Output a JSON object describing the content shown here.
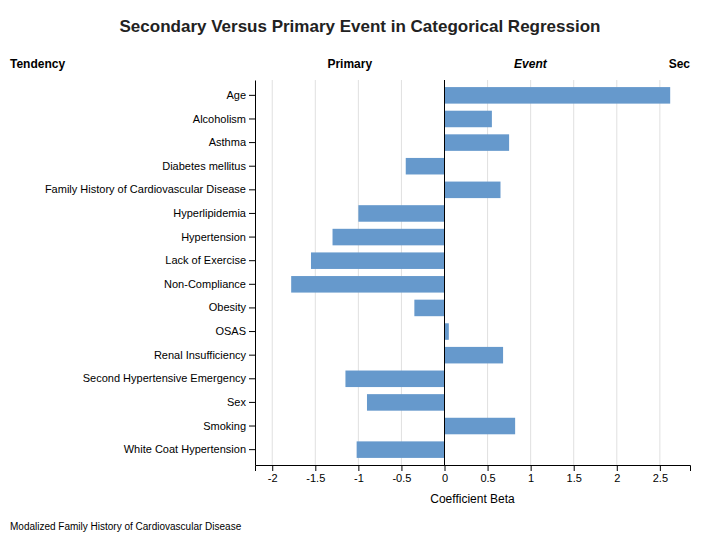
{
  "chart_data": {
    "type": "bar",
    "orientation": "horizontal",
    "title": "Secondary Versus Primary Event in Categorical Regression",
    "annotations": [
      "Tendency",
      "Primary",
      "Event",
      "Sec",
      "Modalized Family History of Cardiovascular Disease"
    ],
    "xlabel": "Coefficient Beta",
    "categories": [
      "Age",
      "Alcoholism",
      "Asthma",
      "Diabetes mellitus",
      "Family History of Cardiovascular Disease",
      "Hyperlipidemia",
      "Hypertension",
      "Lack of Exercise",
      "Non-Compliance",
      "Obesity",
      "OSAS",
      "Renal Insufficiency",
      "Second Hypertensive Emergency",
      "Sex",
      "Smoking",
      "White Coat Hypertension"
    ],
    "values": [
      2.62,
      0.55,
      0.75,
      -0.45,
      0.65,
      -1.0,
      -1.3,
      -1.55,
      -1.78,
      -0.35,
      0.05,
      0.68,
      -1.15,
      -0.9,
      0.82,
      -1.02
    ],
    "color": "#6699CC",
    "xlim": [
      -2.2,
      2.85
    ],
    "xticks": [
      -2,
      -1.5,
      -1,
      -0.5,
      0,
      0.5,
      1,
      1.5,
      2,
      2.5
    ],
    "grid": true
  }
}
